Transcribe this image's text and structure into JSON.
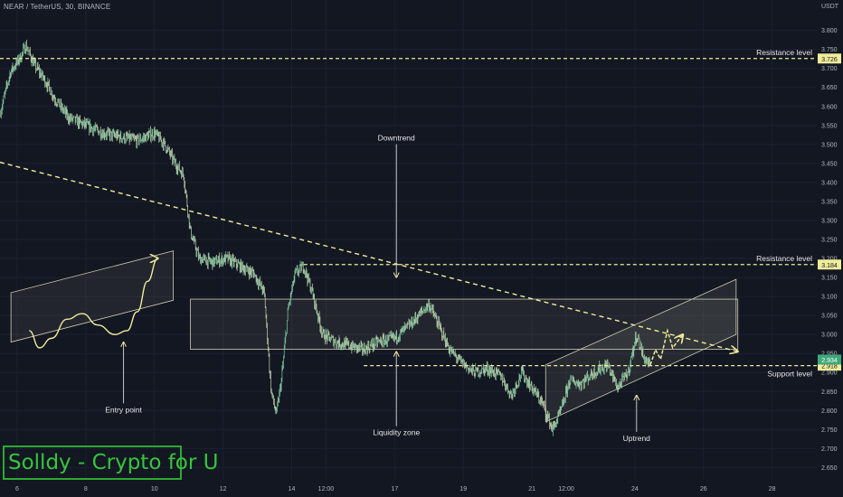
{
  "header": {
    "symbol_line": "NEAR / TetherUS, 30, BINANCE",
    "currency": "USDT"
  },
  "brand_text": "Solldy - Crypto for U",
  "colors": {
    "background": "#131722",
    "grid": "#1c2030",
    "axis_text": "#b2b5be",
    "annotation": "#f0ec9a",
    "candles": "#8fc9a8",
    "brand": "#37c43d",
    "price_tag": "#3fa77a"
  },
  "chart_data": {
    "type": "line",
    "pair": "NEAR/USDT",
    "timeframe": "30",
    "exchange": "BINANCE",
    "ylim": [
      2.62,
      3.88
    ],
    "y_ticks": [
      3.8,
      3.75,
      3.7,
      3.65,
      3.6,
      3.55,
      3.5,
      3.45,
      3.4,
      3.35,
      3.3,
      3.25,
      3.2,
      3.15,
      3.1,
      3.05,
      3.0,
      2.95,
      2.9,
      2.85,
      2.8,
      2.75,
      2.7,
      2.65
    ],
    "y_tick_labels": [
      "3.800",
      "3.750",
      "3.700",
      "3.650",
      "3.600",
      "3.550",
      "3.500",
      "3.450",
      "3.400",
      "3.350",
      "3.300",
      "3.250",
      "3.200",
      "3.150",
      "3.100",
      "3.050",
      "3.000",
      "2.950",
      "2.900",
      "2.850",
      "2.800",
      "2.750",
      "2.700",
      "2.650"
    ],
    "x_ticks": [
      {
        "label": "6",
        "t": 0.5
      },
      {
        "label": "8",
        "t": 2.5
      },
      {
        "label": "10",
        "t": 4.5
      },
      {
        "label": "12",
        "t": 6.5
      },
      {
        "label": "14",
        "t": 8.5
      },
      {
        "label": "12:00",
        "t": 9.5
      },
      {
        "label": "17",
        "t": 11.5
      },
      {
        "label": "19",
        "t": 13.5
      },
      {
        "label": "21",
        "t": 15.5
      },
      {
        "label": "12:00",
        "t": 16.5
      },
      {
        "label": "24",
        "t": 18.5
      },
      {
        "label": "26",
        "t": 20.5
      },
      {
        "label": "28",
        "t": 22.5
      }
    ],
    "xlim": [
      0,
      23.8
    ],
    "price_path": [
      [
        0.0,
        3.58
      ],
      [
        0.3,
        3.69
      ],
      [
        0.6,
        3.73
      ],
      [
        0.75,
        3.76
      ],
      [
        1.0,
        3.71
      ],
      [
        1.3,
        3.67
      ],
      [
        1.6,
        3.62
      ],
      [
        2.0,
        3.57
      ],
      [
        2.5,
        3.55
      ],
      [
        3.0,
        3.53
      ],
      [
        3.5,
        3.52
      ],
      [
        4.0,
        3.51
      ],
      [
        4.5,
        3.53
      ],
      [
        4.8,
        3.5
      ],
      [
        5.1,
        3.45
      ],
      [
        5.35,
        3.42
      ],
      [
        5.55,
        3.27
      ],
      [
        5.8,
        3.2
      ],
      [
        6.2,
        3.19
      ],
      [
        6.6,
        3.2
      ],
      [
        7.0,
        3.18
      ],
      [
        7.4,
        3.16
      ],
      [
        7.7,
        3.11
      ],
      [
        7.9,
        2.85
      ],
      [
        8.05,
        2.79
      ],
      [
        8.2,
        2.88
      ],
      [
        8.4,
        3.07
      ],
      [
        8.6,
        3.16
      ],
      [
        8.85,
        3.18
      ],
      [
        9.1,
        3.11
      ],
      [
        9.4,
        3.0
      ],
      [
        9.8,
        2.98
      ],
      [
        10.2,
        2.97
      ],
      [
        10.6,
        2.96
      ],
      [
        11.0,
        2.98
      ],
      [
        11.5,
        2.99
      ],
      [
        12.0,
        3.03
      ],
      [
        12.5,
        3.08
      ],
      [
        12.8,
        3.02
      ],
      [
        13.1,
        2.96
      ],
      [
        13.4,
        2.93
      ],
      [
        13.8,
        2.9
      ],
      [
        14.2,
        2.91
      ],
      [
        14.6,
        2.89
      ],
      [
        14.9,
        2.84
      ],
      [
        15.2,
        2.9
      ],
      [
        15.5,
        2.86
      ],
      [
        15.8,
        2.82
      ],
      [
        16.1,
        2.75
      ],
      [
        16.35,
        2.8
      ],
      [
        16.6,
        2.88
      ],
      [
        16.9,
        2.87
      ],
      [
        17.3,
        2.9
      ],
      [
        17.7,
        2.92
      ],
      [
        18.0,
        2.86
      ],
      [
        18.3,
        2.9
      ],
      [
        18.55,
        3.0
      ],
      [
        18.75,
        2.94
      ],
      [
        18.95,
        2.92
      ]
    ],
    "levels": [
      {
        "label": "Resistance level",
        "price": 3.726,
        "tag": "3.726"
      },
      {
        "label": "Resistance level",
        "price": 3.184,
        "tag": "3.184"
      },
      {
        "label": "Support level",
        "price": 2.918,
        "tag": "2.918"
      }
    ],
    "current_price": {
      "value": 2.934,
      "tag": "2.934"
    },
    "downtrend_line": [
      [
        0.0,
        3.453
      ],
      [
        21.5,
        2.955
      ]
    ],
    "liquidity_zone": {
      "t_start": 5.55,
      "t_end": 21.5,
      "price_low": 2.961,
      "price_high": 3.093
    },
    "uptrend_channel": {
      "lower": [
        [
          15.9,
          2.77
        ],
        [
          21.45,
          3.0
        ]
      ],
      "upper": [
        [
          15.9,
          2.92
        ],
        [
          21.45,
          3.145
        ]
      ]
    },
    "projection_path": [
      [
        18.95,
        2.92
      ],
      [
        19.1,
        2.96
      ],
      [
        19.25,
        2.935
      ],
      [
        19.45,
        3.01
      ],
      [
        19.6,
        2.965
      ],
      [
        19.9,
        3.0
      ]
    ],
    "annotations": [
      {
        "text": "Downtrend",
        "target": [
          11.55,
          3.15
        ]
      },
      {
        "text": "Liquidity zone",
        "target": [
          11.55,
          2.955
        ]
      },
      {
        "text": "Uptrend",
        "target": [
          18.55,
          2.84
        ]
      },
      {
        "text": "Entry point",
        "target": [
          3.6,
          2.98
        ]
      }
    ],
    "entry_example": {
      "channel_lower": [
        [
          0.32,
          2.98
        ],
        [
          5.05,
          3.09
        ]
      ],
      "channel_upper": [
        [
          0.32,
          3.11
        ],
        [
          5.05,
          3.22
        ]
      ],
      "curve": [
        [
          0.85,
          3.01
        ],
        [
          1.15,
          2.965
        ],
        [
          1.5,
          2.99
        ],
        [
          1.95,
          3.04
        ],
        [
          2.4,
          3.055
        ],
        [
          2.85,
          3.025
        ],
        [
          3.35,
          3.0
        ],
        [
          3.7,
          3.01
        ],
        [
          4.0,
          3.06
        ],
        [
          4.3,
          3.14
        ],
        [
          4.6,
          3.2
        ]
      ]
    }
  }
}
